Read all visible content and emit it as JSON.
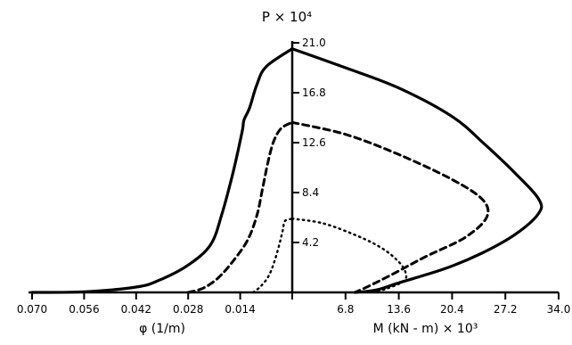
{
  "chart_data": {
    "type": "line",
    "title": "P × 10⁴",
    "y_axis": {
      "label": "P × 10⁴",
      "ticks": [
        4.2,
        8.4,
        12.6,
        16.8,
        21.0
      ],
      "tick_labels": [
        "4.2",
        "8.4",
        "12.6",
        "16.8",
        "21.0"
      ],
      "range": [
        0,
        21.0
      ]
    },
    "x_left": {
      "label": "φ (1/m)",
      "ticks": [
        0.07,
        0.056,
        0.042,
        0.028,
        0.014
      ],
      "tick_labels": [
        "0.070",
        "0.056",
        "0.042",
        "0.028",
        "0.014"
      ],
      "range": [
        0,
        0.07
      ]
    },
    "x_right": {
      "label": "M (kN - m) × 10³",
      "ticks": [
        6.8,
        13.6,
        20.4,
        27.2,
        34.0
      ],
      "tick_labels": [
        "6.8",
        "13.6",
        "20.4",
        "27.2",
        "34.0"
      ],
      "range": [
        0,
        34.0
      ]
    },
    "series": [
      {
        "style": "solid",
        "phi_branch": [
          [
            0.07,
            0
          ],
          [
            0.056,
            0.05
          ],
          [
            0.042,
            0.45
          ],
          [
            0.036,
            1.0
          ],
          [
            0.028,
            2.3
          ],
          [
            0.022,
            4.0
          ],
          [
            0.019,
            6.5
          ],
          [
            0.016,
            10.0
          ],
          [
            0.0135,
            13.5
          ],
          [
            0.013,
            14.5
          ],
          [
            0.0115,
            15.5
          ],
          [
            0.0095,
            17.5
          ],
          [
            0.007,
            19.0
          ],
          [
            0.0,
            20.5
          ]
        ],
        "m_branch": [
          [
            0.0,
            20.5
          ],
          [
            6.8,
            18.9
          ],
          [
            13.6,
            17.2
          ],
          [
            20.4,
            14.8
          ],
          [
            24.5,
            12.5
          ],
          [
            28.5,
            10.0
          ],
          [
            31.5,
            7.8
          ],
          [
            31.4,
            6.6
          ],
          [
            28.5,
            4.9
          ],
          [
            24.2,
            3.3
          ],
          [
            19.5,
            2.0
          ],
          [
            13.6,
            0.8
          ],
          [
            10.7,
            0.2
          ],
          [
            8.0,
            0
          ]
        ]
      },
      {
        "style": "dashed",
        "phi_branch": [
          [
            0.028,
            0
          ],
          [
            0.024,
            0.35
          ],
          [
            0.02,
            1.2
          ],
          [
            0.016,
            2.6
          ],
          [
            0.012,
            4.4
          ],
          [
            0.0095,
            6.5
          ],
          [
            0.008,
            8.7
          ],
          [
            0.0065,
            11.0
          ],
          [
            0.005,
            12.7
          ],
          [
            0.003,
            13.8
          ],
          [
            0.0,
            14.3
          ]
        ],
        "m_branch": [
          [
            0.0,
            14.3
          ],
          [
            6.8,
            13.3
          ],
          [
            13.6,
            11.6
          ],
          [
            20.4,
            9.5
          ],
          [
            24.3,
            7.8
          ],
          [
            24.8,
            6.3
          ],
          [
            22.0,
            4.6
          ],
          [
            17.0,
            3.0
          ],
          [
            13.0,
            1.6
          ],
          [
            10.0,
            0.6
          ],
          [
            8.0,
            0
          ]
        ]
      },
      {
        "style": "dotted",
        "phi_branch": [
          [
            0.0105,
            0
          ],
          [
            0.0085,
            0.5
          ],
          [
            0.0065,
            1.3
          ],
          [
            0.005,
            2.4
          ],
          [
            0.0035,
            4.0
          ],
          [
            0.0025,
            5.3
          ],
          [
            0.002,
            6.0
          ],
          [
            0.0,
            6.2
          ]
        ],
        "m_branch": [
          [
            0.0,
            6.2
          ],
          [
            4.0,
            5.8
          ],
          [
            8.5,
            4.7
          ],
          [
            11.5,
            3.7
          ],
          [
            13.4,
            2.7
          ],
          [
            14.4,
            1.8
          ],
          [
            14.3,
            1.0
          ],
          [
            12.0,
            0.3
          ],
          [
            10.0,
            0
          ]
        ]
      }
    ]
  }
}
